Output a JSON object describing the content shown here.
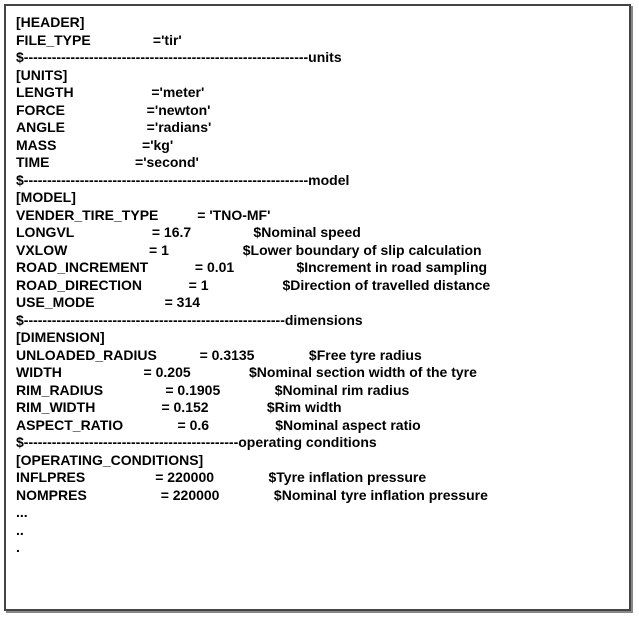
{
  "header": {
    "section": "[HEADER]",
    "file_type_line": "FILE_TYPE                ='tir'",
    "sep": "$-------------------------------------------------------------units"
  },
  "units": {
    "section": "[UNITS]",
    "length": "LENGTH                    ='meter'",
    "force": "FORCE                     ='newton'",
    "angle": "ANGLE                     ='radians'",
    "mass": "MASS                      ='kg'",
    "time": "TIME                      ='second'",
    "sep": "$-------------------------------------------------------------model"
  },
  "model": {
    "section": "[MODEL]",
    "vender": "VENDER_TIRE_TYPE          = 'TNO-MF'",
    "longvl": "LONGVL                    = 16.7                $Nominal speed",
    "vxlow": "VXLOW                     = 1                   $Lower boundary of slip calculation",
    "road_increment": "ROAD_INCREMENT            = 0.01                $Increment in road sampling",
    "road_direction": "ROAD_DIRECTION            = 1                   $Direction of travelled distance",
    "use_mode": "USE_MODE                  = 314",
    "sep": "$--------------------------------------------------------dimensions"
  },
  "dimension": {
    "section": "[DIMENSION]",
    "unloaded_radius": "UNLOADED_RADIUS           = 0.3135              $Free tyre radius",
    "width": "WIDTH                     = 0.205               $Nominal section width of the tyre",
    "rim_radius": "RIM_RADIUS                = 0.1905              $Nominal rim radius",
    "rim_width": "RIM_WIDTH                 = 0.152               $Rim width",
    "aspect_ratio": "ASPECT_RATIO              = 0.6                 $Nominal aspect ratio",
    "sep": "$----------------------------------------------operating conditions"
  },
  "operating": {
    "section": "[OPERATING_CONDITIONS]",
    "inflpres": "INFLPRES                  = 220000              $Tyre inflation pressure",
    "nompres": "NOMPRES                   = 220000              $Nominal tyre inflation pressure"
  },
  "trail": {
    "l1": "...",
    "l2": "..",
    "l3": "."
  }
}
